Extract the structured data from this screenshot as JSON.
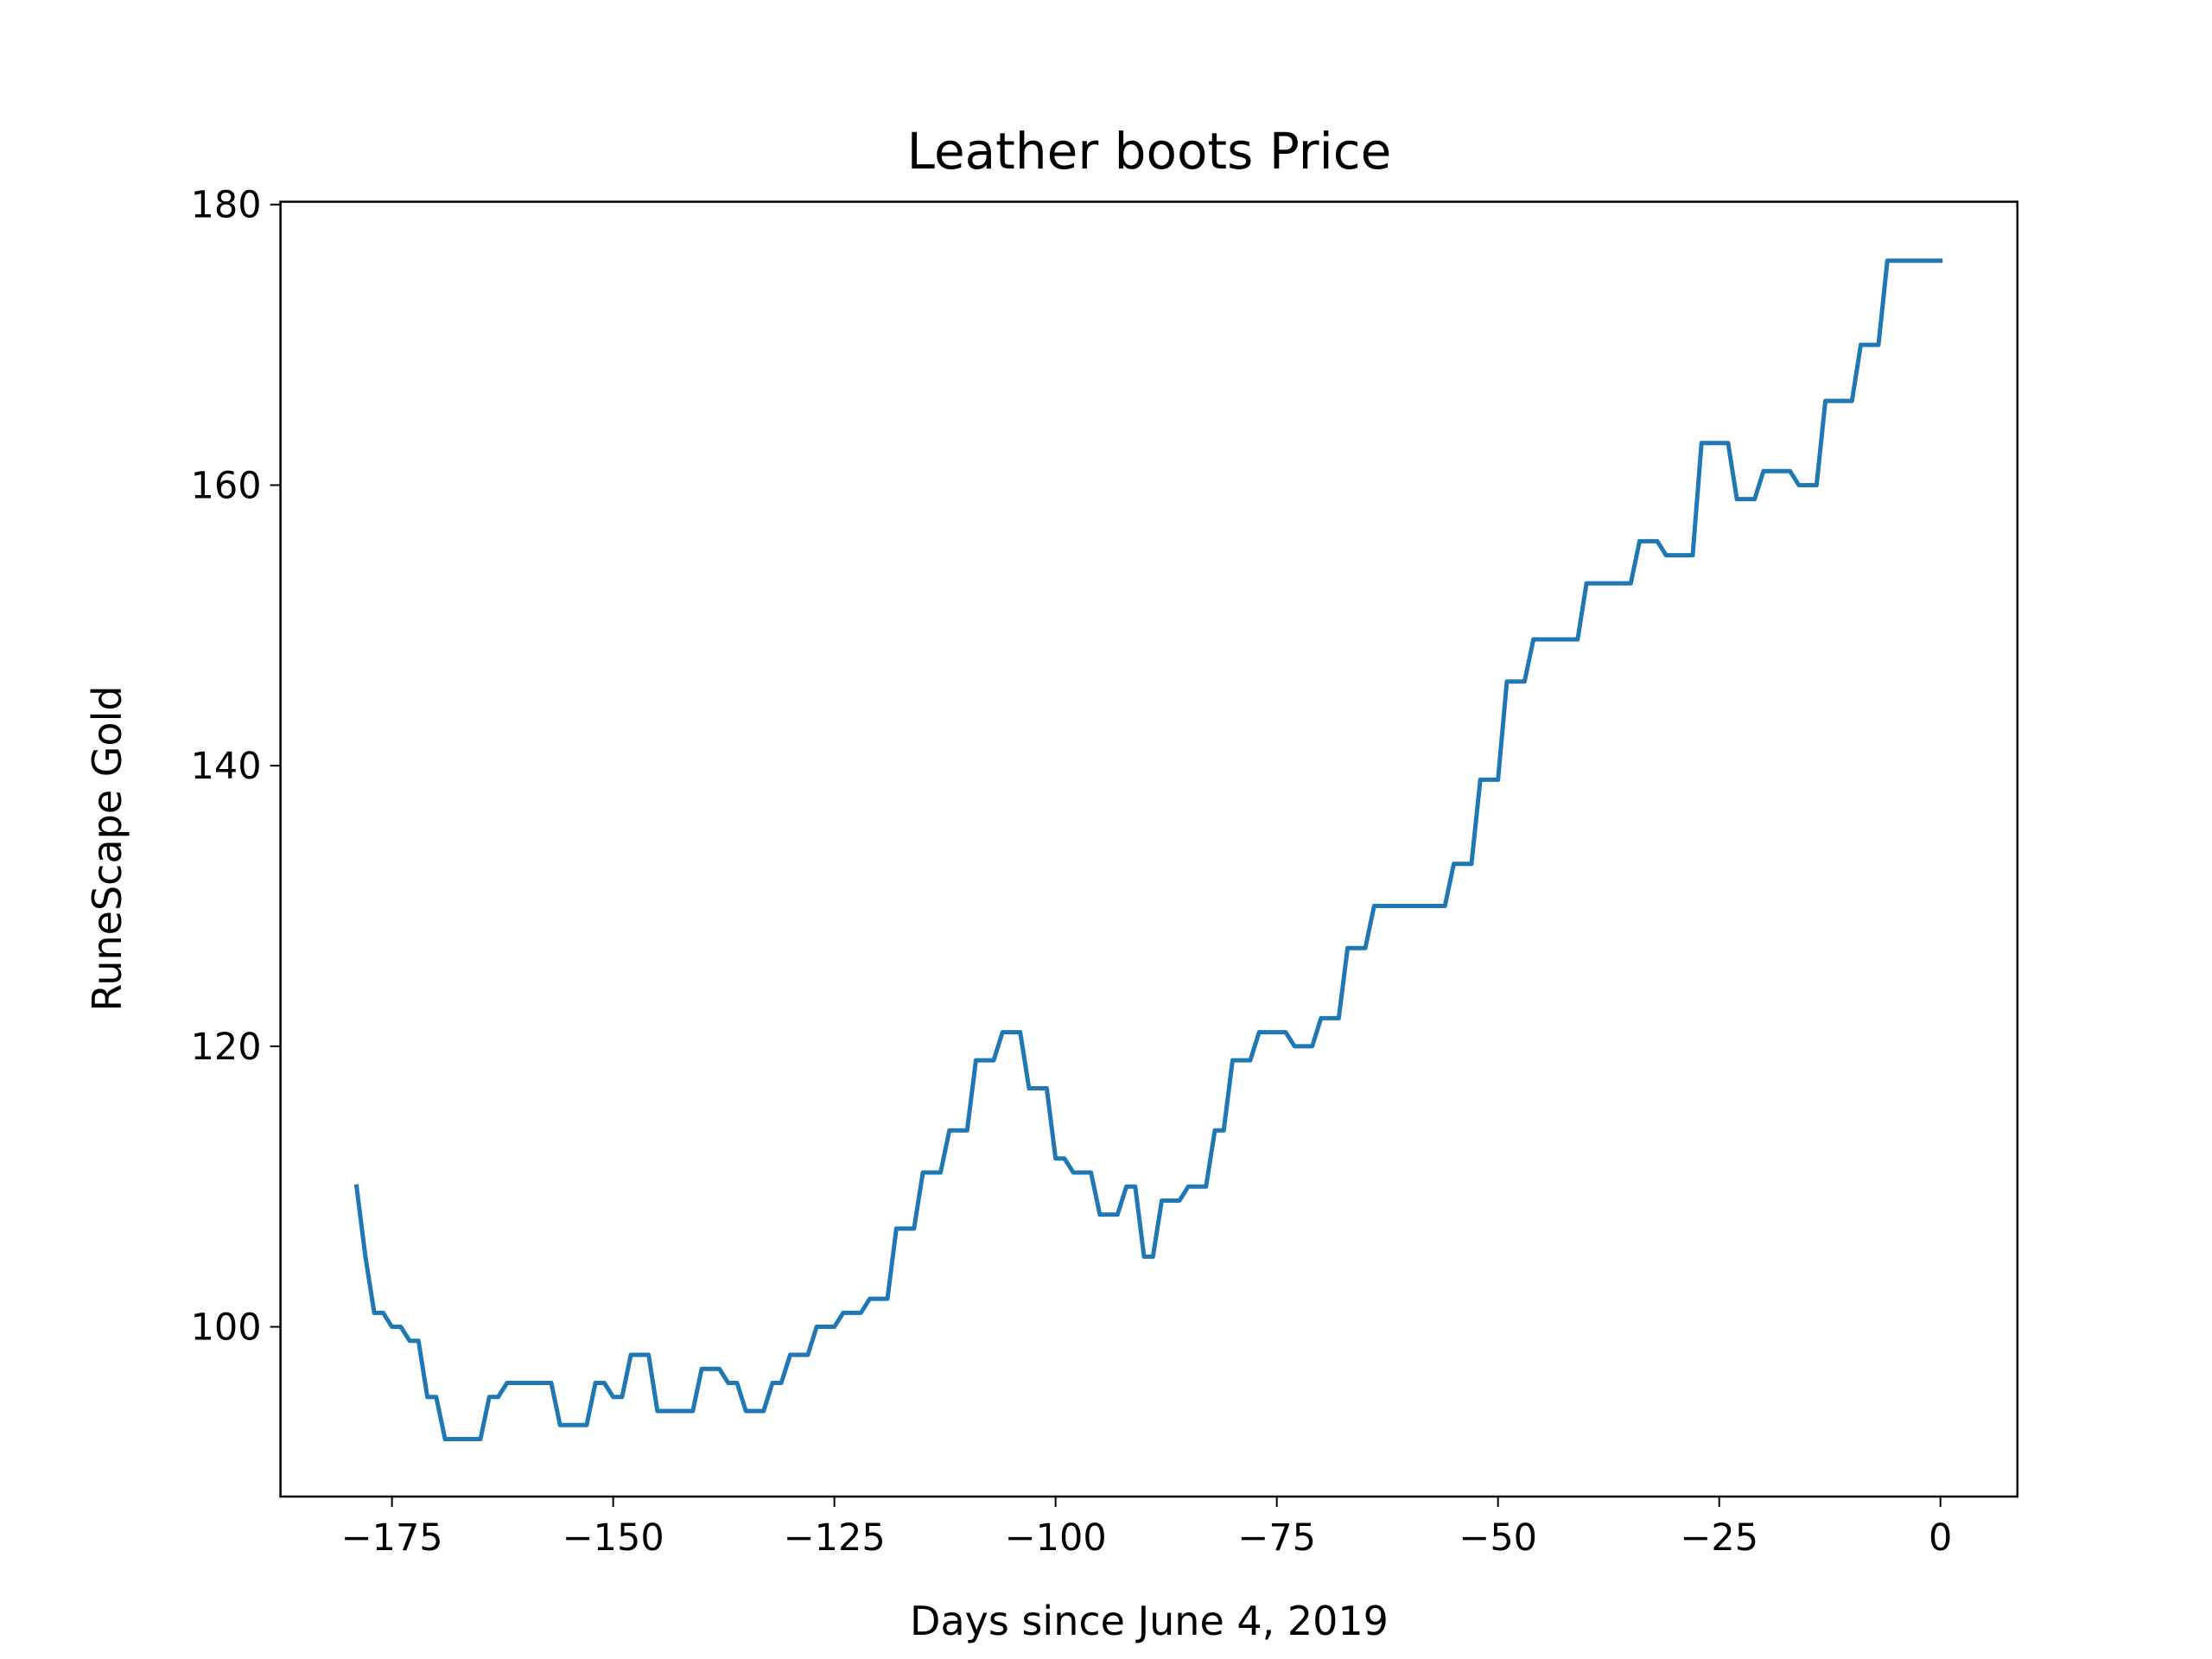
{
  "chart_data": {
    "type": "line",
    "title": "Leather boots Price",
    "x_label": "Days since June 4, 2019",
    "y_label": "RuneScape Gold",
    "xlim": [
      -187.6,
      8.7
    ],
    "ylim": [
      87.9,
      180.2
    ],
    "xticks": [
      {
        "value": -175,
        "label": "−175"
      },
      {
        "value": -150,
        "label": "−150"
      },
      {
        "value": -125,
        "label": "−125"
      },
      {
        "value": -100,
        "label": "−100"
      },
      {
        "value": -75,
        "label": "−75"
      },
      {
        "value": -50,
        "label": "−50"
      },
      {
        "value": -25,
        "label": "−25"
      },
      0
    ],
    "yticks": [
      100,
      120,
      140,
      160,
      180
    ],
    "grid": false,
    "series": [
      {
        "name": "Leather boots",
        "color": "#1f77b4",
        "x": [
          -179,
          -178,
          -177,
          -176,
          -175,
          -174,
          -173,
          -172,
          -171,
          -170,
          -169,
          -165,
          -164,
          -163,
          -162,
          -157,
          -156,
          -153,
          -152,
          -151,
          -150,
          -149,
          -148,
          -146,
          -145,
          -141,
          -140,
          -138,
          -137,
          -136,
          -135,
          -133,
          -132,
          -131,
          -130,
          -128,
          -127,
          -125,
          -124,
          -122,
          -121,
          -119,
          -118,
          -116,
          -115,
          -113,
          -112,
          -110,
          -109,
          -107,
          -106,
          -104,
          -103,
          -101,
          -100,
          -99,
          -98,
          -96,
          -95,
          -93,
          -92,
          -91,
          -90,
          -89,
          -88,
          -86,
          -85,
          -83,
          -82,
          -81,
          -80,
          -78,
          -77,
          -74,
          -73,
          -71,
          -70,
          -68,
          -67,
          -65,
          -64,
          -56,
          -55,
          -53,
          -52,
          -50,
          -49,
          -47,
          -46,
          -41,
          -40,
          -35,
          -34,
          -32,
          -31,
          -28,
          -27,
          -24,
          -23,
          -21,
          -20,
          -17,
          -16,
          -14,
          -13,
          -10,
          -9,
          -7,
          -6,
          0
        ],
        "values": [
          110,
          105,
          101,
          101,
          100,
          100,
          99,
          99,
          95,
          95,
          92,
          92,
          95,
          95,
          96,
          96,
          93,
          93,
          96,
          96,
          95,
          95,
          98,
          98,
          94,
          94,
          97,
          97,
          96,
          96,
          94,
          94,
          96,
          96,
          98,
          98,
          100,
          100,
          101,
          101,
          102,
          102,
          107,
          107,
          111,
          111,
          114,
          114,
          119,
          119,
          121,
          121,
          117,
          117,
          112,
          112,
          111,
          111,
          108,
          108,
          110,
          110,
          105,
          105,
          109,
          109,
          110,
          110,
          114,
          114,
          119,
          119,
          121,
          121,
          120,
          120,
          122,
          122,
          127,
          127,
          130,
          130,
          133,
          133,
          139,
          139,
          146,
          146,
          149,
          149,
          153,
          153,
          156,
          156,
          155,
          155,
          163,
          163,
          159,
          159,
          161,
          161,
          160,
          160,
          166,
          166,
          170,
          170,
          176,
          176
        ]
      }
    ]
  }
}
